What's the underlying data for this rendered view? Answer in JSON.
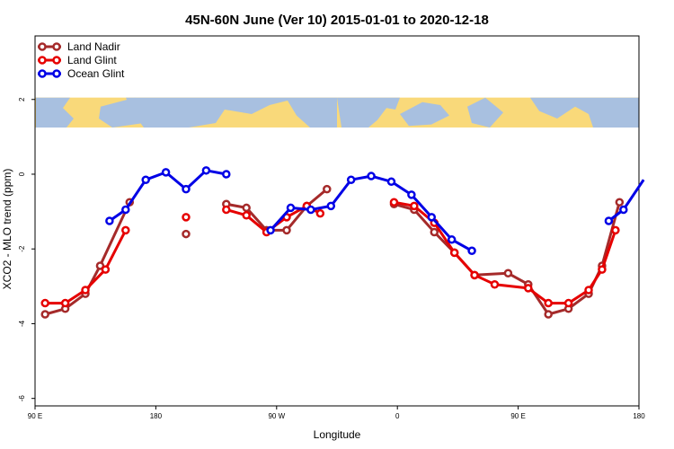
{
  "chart_data": {
    "type": "line",
    "title": "45N-60N June (Ver 10)   2015-01-01 to 2020-12-18",
    "xlabel": "Longitude",
    "ylabel": "XCO2 - MLO trend (ppm)",
    "xlim": [
      90,
      540
    ],
    "ylim": [
      -6.2,
      3.7
    ],
    "x_ticks": [
      {
        "value": 90,
        "label": "90 E"
      },
      {
        "value": 180,
        "label": "180"
      },
      {
        "value": 270,
        "label": "90 W"
      },
      {
        "value": 360,
        "label": "0"
      },
      {
        "value": 450,
        "label": "90 E"
      },
      {
        "value": 540,
        "label": "180"
      }
    ],
    "y_ticks": [
      {
        "value": -6,
        "label": "-6"
      },
      {
        "value": -4,
        "label": "-4"
      },
      {
        "value": -2,
        "label": "-2"
      },
      {
        "value": 0,
        "label": "0"
      },
      {
        "value": 2,
        "label": "2"
      }
    ],
    "legend_position": "top-left",
    "map_band": {
      "y_range": [
        1.25,
        2.05
      ],
      "land_color": "#f9d97a",
      "ocean_color": "#a8c0e0"
    },
    "series": [
      {
        "name": "Land Nadir",
        "color": "#a52a2a",
        "segments": [
          [
            [
              97.5,
              -3.75
            ],
            [
              112.5,
              -3.6
            ],
            [
              127.5,
              -3.2
            ],
            [
              138.5,
              -2.45
            ],
            [
              160.5,
              -0.75
            ]
          ],
          [
            [
              202.5,
              -1.6
            ]
          ],
          [
            [
              232.5,
              -0.8
            ],
            [
              247.5,
              -0.9
            ],
            [
              262.5,
              -1.5
            ],
            [
              277.5,
              -1.5
            ],
            [
              292.5,
              -0.85
            ],
            [
              307.5,
              -0.4
            ]
          ],
          [
            [
              357.5,
              -0.8
            ],
            [
              372.5,
              -0.95
            ],
            [
              387.5,
              -1.55
            ],
            [
              402.5,
              -2.1
            ],
            [
              417.5,
              -2.7
            ],
            [
              442.5,
              -2.65
            ],
            [
              457.5,
              -2.95
            ],
            [
              472.5,
              -3.75
            ],
            [
              487.5,
              -3.6
            ],
            [
              502.5,
              -3.2
            ],
            [
              512.5,
              -2.45
            ],
            [
              525.5,
              -0.75
            ]
          ]
        ]
      },
      {
        "name": "Land Glint",
        "color": "#e60000",
        "segments": [
          [
            [
              97.5,
              -3.45
            ],
            [
              112.5,
              -3.45
            ],
            [
              127.5,
              -3.1
            ],
            [
              142.5,
              -2.55
            ],
            [
              157.5,
              -1.5
            ]
          ],
          [
            [
              202.5,
              -1.15
            ]
          ],
          [
            [
              232.5,
              -0.95
            ],
            [
              247.5,
              -1.1
            ],
            [
              262.5,
              -1.55
            ],
            [
              277.5,
              -1.15
            ],
            [
              292.5,
              -0.85
            ],
            [
              302.5,
              -1.05
            ]
          ],
          [
            [
              357.5,
              -0.75
            ],
            [
              372.5,
              -0.85
            ],
            [
              387.5,
              -1.3
            ],
            [
              402.5,
              -2.1
            ],
            [
              417.5,
              -2.7
            ],
            [
              432.5,
              -2.95
            ],
            [
              457.5,
              -3.05
            ],
            [
              472.5,
              -3.45
            ],
            [
              487.5,
              -3.45
            ],
            [
              502.5,
              -3.1
            ],
            [
              512.5,
              -2.55
            ],
            [
              522.5,
              -1.5
            ]
          ]
        ]
      },
      {
        "name": "Ocean Glint",
        "color": "#0000e6",
        "segments": [
          [
            [
              145.5,
              -1.25
            ],
            [
              157.5,
              -0.95
            ],
            [
              172.5,
              -0.15
            ],
            [
              187.5,
              0.05
            ],
            [
              202.5,
              -0.4
            ],
            [
              217.5,
              0.1
            ],
            [
              232.5,
              0.0
            ]
          ],
          [
            [
              265.5,
              -1.5
            ],
            [
              280.5,
              -0.9
            ],
            [
              295.5,
              -0.95
            ],
            [
              310.5,
              -0.85
            ],
            [
              325.5,
              -0.15
            ],
            [
              340.5,
              -0.05
            ],
            [
              355.5,
              -0.2
            ],
            [
              370.5,
              -0.55
            ],
            [
              385.5,
              -1.15
            ],
            [
              400.5,
              -1.75
            ],
            [
              415.5,
              -2.05
            ]
          ],
          [
            [
              517.5,
              -1.25
            ],
            [
              528.5,
              -0.95
            ],
            [
              543.5,
              -0.15
            ]
          ]
        ]
      }
    ]
  }
}
